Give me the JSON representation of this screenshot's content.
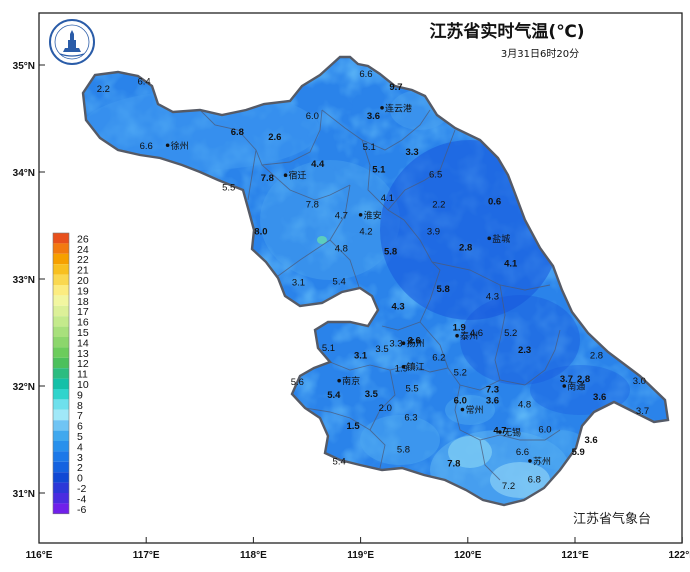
{
  "title": "江苏省实时气温(℃)",
  "timestamp": "3月31日6时20分",
  "agency": "江苏省气象台",
  "logo": "jiangsu-meteorological-logo",
  "axes": {
    "x_ticks": [
      116,
      117,
      118,
      119,
      120,
      121,
      122
    ],
    "x_labels": [
      "116°E",
      "117°E",
      "118°E",
      "119°E",
      "120°E",
      "121°E",
      "122°E"
    ],
    "y_ticks": [
      31,
      32,
      33,
      34,
      35
    ],
    "y_labels": [
      "31°N",
      "32°N",
      "33°N",
      "34°N",
      "35°N"
    ],
    "lon_range": [
      116,
      122
    ],
    "lat_range": [
      30.5,
      35.5
    ]
  },
  "legend": {
    "labels": [
      "26",
      "24",
      "22",
      "21",
      "20",
      "19",
      "18",
      "17",
      "16",
      "15",
      "14",
      "13",
      "12",
      "11",
      "10",
      "9",
      "8",
      "7",
      "6",
      "5",
      "4",
      "3",
      "2",
      "0",
      "-2",
      "-4",
      "-6"
    ],
    "colors": [
      "#e8501c",
      "#f27a10",
      "#f6a000",
      "#f8c020",
      "#fad850",
      "#fcec80",
      "#f2f6a0",
      "#dcf098",
      "#c4ea8c",
      "#a8e07c",
      "#8cd66c",
      "#6ccc5c",
      "#4cc05c",
      "#2cbc80",
      "#14c0a8",
      "#30d4cc",
      "#6ee0ec",
      "#a0e8f8",
      "#70c4f4",
      "#40a8ee",
      "#2890ec",
      "#1c78e8",
      "#1462e0",
      "#1048d4",
      "#2c38d8",
      "#4a2ce0",
      "#7020ea"
    ]
  },
  "cities": [
    {
      "name": "徐州",
      "lon": 117.2,
      "lat": 34.25
    },
    {
      "name": "连云港",
      "lon": 119.2,
      "lat": 34.6
    },
    {
      "name": "宿迁",
      "lon": 118.3,
      "lat": 33.97
    },
    {
      "name": "淮安",
      "lon": 119.0,
      "lat": 33.6
    },
    {
      "name": "盐城",
      "lon": 120.2,
      "lat": 33.38
    },
    {
      "name": "扬州",
      "lon": 119.4,
      "lat": 32.4
    },
    {
      "name": "泰州",
      "lon": 119.9,
      "lat": 32.47
    },
    {
      "name": "南京",
      "lon": 118.8,
      "lat": 32.05
    },
    {
      "name": "镇江",
      "lon": 119.4,
      "lat": 32.18
    },
    {
      "name": "南通",
      "lon": 120.9,
      "lat": 32.0
    },
    {
      "name": "常州",
      "lon": 119.95,
      "lat": 31.78
    },
    {
      "name": "无锡",
      "lon": 120.3,
      "lat": 31.57
    },
    {
      "name": "苏州",
      "lon": 120.58,
      "lat": 31.3
    }
  ],
  "stations": [
    {
      "v": "2.2",
      "lon": 116.6,
      "lat": 34.78,
      "b": false
    },
    {
      "v": "6.4",
      "lon": 116.98,
      "lat": 34.85,
      "b": false
    },
    {
      "v": "6.6",
      "lon": 117.0,
      "lat": 34.25,
      "b": false
    },
    {
      "v": "6.8",
      "lon": 117.85,
      "lat": 34.38,
      "b": true
    },
    {
      "v": "2.6",
      "lon": 118.2,
      "lat": 34.33,
      "b": true
    },
    {
      "v": "6.0",
      "lon": 118.55,
      "lat": 34.53,
      "b": false
    },
    {
      "v": "6.6",
      "lon": 119.05,
      "lat": 34.92,
      "b": false
    },
    {
      "v": "9.7",
      "lon": 119.33,
      "lat": 34.8,
      "b": true
    },
    {
      "v": "3.6",
      "lon": 119.12,
      "lat": 34.53,
      "b": true
    },
    {
      "v": "5.1",
      "lon": 119.08,
      "lat": 34.24,
      "b": false
    },
    {
      "v": "3.3",
      "lon": 119.48,
      "lat": 34.19,
      "b": true
    },
    {
      "v": "4.4",
      "lon": 118.6,
      "lat": 34.08,
      "b": true
    },
    {
      "v": "5.1",
      "lon": 119.17,
      "lat": 34.03,
      "b": true
    },
    {
      "v": "6.5",
      "lon": 119.7,
      "lat": 33.98,
      "b": false
    },
    {
      "v": "5.5",
      "lon": 117.77,
      "lat": 33.86,
      "b": false
    },
    {
      "v": "7.8",
      "lon": 118.13,
      "lat": 33.95,
      "b": true
    },
    {
      "v": "7.8",
      "lon": 118.55,
      "lat": 33.7,
      "b": false
    },
    {
      "v": "4.1",
      "lon": 119.25,
      "lat": 33.76,
      "b": false
    },
    {
      "v": "2.2",
      "lon": 119.73,
      "lat": 33.7,
      "b": false
    },
    {
      "v": "0.6",
      "lon": 120.25,
      "lat": 33.73,
      "b": true
    },
    {
      "v": "4.7",
      "lon": 118.82,
      "lat": 33.6,
      "b": false
    },
    {
      "v": "4.2",
      "lon": 119.05,
      "lat": 33.45,
      "b": false
    },
    {
      "v": "3.9",
      "lon": 119.68,
      "lat": 33.45,
      "b": false
    },
    {
      "v": "8.0",
      "lon": 118.07,
      "lat": 33.45,
      "b": true
    },
    {
      "v": "4.8",
      "lon": 118.82,
      "lat": 33.29,
      "b": false
    },
    {
      "v": "5.8",
      "lon": 119.28,
      "lat": 33.26,
      "b": true
    },
    {
      "v": "2.8",
      "lon": 119.98,
      "lat": 33.3,
      "b": true
    },
    {
      "v": "4.1",
      "lon": 120.4,
      "lat": 33.15,
      "b": true
    },
    {
      "v": "3.1",
      "lon": 118.42,
      "lat": 32.97,
      "b": false
    },
    {
      "v": "5.4",
      "lon": 118.8,
      "lat": 32.98,
      "b": false
    },
    {
      "v": "5.8",
      "lon": 119.77,
      "lat": 32.91,
      "b": true
    },
    {
      "v": "4.3",
      "lon": 120.23,
      "lat": 32.84,
      "b": false
    },
    {
      "v": "4.3",
      "lon": 119.35,
      "lat": 32.75,
      "b": true
    },
    {
      "v": "1.9",
      "lon": 119.92,
      "lat": 32.55,
      "b": true
    },
    {
      "v": "4.6",
      "lon": 120.08,
      "lat": 32.5,
      "b": false
    },
    {
      "v": "5.2",
      "lon": 120.4,
      "lat": 32.5,
      "b": false
    },
    {
      "v": "5.1",
      "lon": 118.7,
      "lat": 32.36,
      "b": false
    },
    {
      "v": "3.3",
      "lon": 119.33,
      "lat": 32.4,
      "b": false
    },
    {
      "v": "2.6",
      "lon": 119.5,
      "lat": 32.43,
      "b": true
    },
    {
      "v": "3.5",
      "lon": 119.2,
      "lat": 32.35,
      "b": false
    },
    {
      "v": "3.1",
      "lon": 119.0,
      "lat": 32.29,
      "b": true
    },
    {
      "v": "6.2",
      "lon": 119.73,
      "lat": 32.27,
      "b": false
    },
    {
      "v": "2.3",
      "lon": 120.53,
      "lat": 32.34,
      "b": true
    },
    {
      "v": "2.8",
      "lon": 121.2,
      "lat": 32.29,
      "b": false
    },
    {
      "v": "1.9",
      "lon": 119.38,
      "lat": 32.17,
      "b": false
    },
    {
      "v": "5.2",
      "lon": 119.93,
      "lat": 32.13,
      "b": false
    },
    {
      "v": "5.6",
      "lon": 118.41,
      "lat": 32.04,
      "b": false
    },
    {
      "v": "5.4",
      "lon": 118.75,
      "lat": 31.92,
      "b": true
    },
    {
      "v": "3.5",
      "lon": 119.1,
      "lat": 31.93,
      "b": true
    },
    {
      "v": "5.5",
      "lon": 119.48,
      "lat": 31.98,
      "b": false
    },
    {
      "v": "7.3",
      "lon": 120.23,
      "lat": 31.97,
      "b": true
    },
    {
      "v": "3.7",
      "lon": 120.92,
      "lat": 32.07,
      "b": true
    },
    {
      "v": "2.8",
      "lon": 121.08,
      "lat": 32.07,
      "b": true
    },
    {
      "v": "3.0",
      "lon": 121.6,
      "lat": 32.05,
      "b": false
    },
    {
      "v": "6.0",
      "lon": 119.93,
      "lat": 31.87,
      "b": true
    },
    {
      "v": "3.6",
      "lon": 120.23,
      "lat": 31.87,
      "b": true
    },
    {
      "v": "4.8",
      "lon": 120.53,
      "lat": 31.83,
      "b": false
    },
    {
      "v": "3.6",
      "lon": 121.23,
      "lat": 31.9,
      "b": true
    },
    {
      "v": "3.7",
      "lon": 121.63,
      "lat": 31.77,
      "b": false
    },
    {
      "v": "2.0",
      "lon": 119.23,
      "lat": 31.8,
      "b": false
    },
    {
      "v": "6.3",
      "lon": 119.47,
      "lat": 31.71,
      "b": false
    },
    {
      "v": "1.5",
      "lon": 118.93,
      "lat": 31.63,
      "b": true
    },
    {
      "v": "4.7",
      "lon": 120.3,
      "lat": 31.59,
      "b": true
    },
    {
      "v": "6.0",
      "lon": 120.72,
      "lat": 31.6,
      "b": false
    },
    {
      "v": "3.6",
      "lon": 121.15,
      "lat": 31.5,
      "b": true
    },
    {
      "v": "5.8",
      "lon": 119.4,
      "lat": 31.41,
      "b": false
    },
    {
      "v": "6.6",
      "lon": 120.51,
      "lat": 31.39,
      "b": false
    },
    {
      "v": "5.9",
      "lon": 121.03,
      "lat": 31.39,
      "b": true
    },
    {
      "v": "5.4",
      "lon": 118.8,
      "lat": 31.3,
      "b": false
    },
    {
      "v": "7.8",
      "lon": 119.87,
      "lat": 31.28,
      "b": true
    },
    {
      "v": "6.8",
      "lon": 120.62,
      "lat": 31.13,
      "b": false
    },
    {
      "v": "7.2",
      "lon": 120.38,
      "lat": 31.07,
      "b": false
    }
  ]
}
